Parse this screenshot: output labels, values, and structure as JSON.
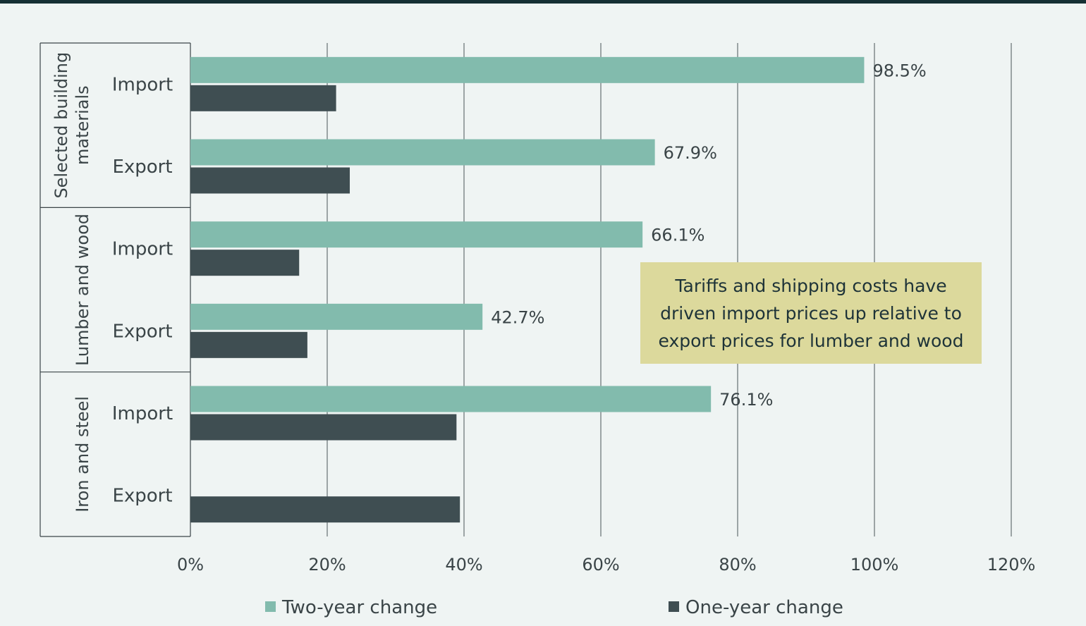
{
  "chart_data": {
    "type": "bar",
    "orientation": "horizontal",
    "groups": [
      "Selected building materials",
      "Lumber and wood",
      "Iron and steel"
    ],
    "categories": [
      "Import",
      "Export"
    ],
    "series": [
      {
        "name": "Two-year change",
        "color": "#82bbad",
        "values": [
          [
            98.5,
            67.9
          ],
          [
            66.1,
            42.7
          ],
          [
            76.1,
            null
          ]
        ],
        "labels": [
          [
            "98.5%",
            "67.9%"
          ],
          [
            "66.1%",
            "42.7%"
          ],
          [
            "76.1%",
            null
          ]
        ]
      },
      {
        "name": "One-year change",
        "color": "#3f4e52",
        "values": [
          [
            21.3,
            23.3
          ],
          [
            15.9,
            17.1
          ],
          [
            38.9,
            39.4
          ]
        ]
      }
    ],
    "xlim": [
      0,
      120
    ],
    "xticks": [
      "0%",
      "20%",
      "40%",
      "60%",
      "80%",
      "100%",
      "120%"
    ],
    "grid": true,
    "legend_position": "bottom",
    "annotation": "Tariffs and shipping costs have driven import prices up relative to export prices for lumber and wood"
  }
}
